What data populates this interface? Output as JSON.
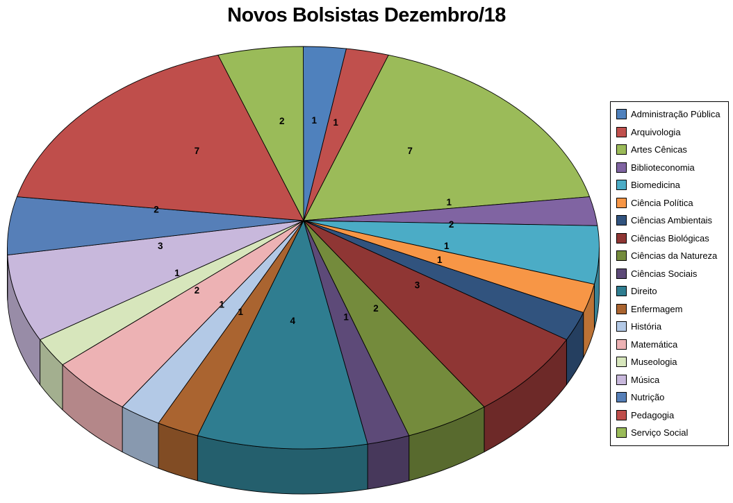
{
  "page": {
    "background_color": "#FFFFFF",
    "text_color": "#000000"
  },
  "chart_data": {
    "type": "pie",
    "projection": "3d",
    "title": "Novos Bolsistas Dezembro/18",
    "legend_position": "right",
    "label_type": "value",
    "start_angle_deg": 0,
    "direction": "clockwise",
    "total": 43,
    "slices": [
      {
        "label": "Administração Pública",
        "value": 1,
        "color": "#4F81BD"
      },
      {
        "label": "Arquivologia",
        "value": 1,
        "color": "#C0504D"
      },
      {
        "label": "Artes Cênicas",
        "value": 7,
        "color": "#9BBB59"
      },
      {
        "label": "Biblioteconomia",
        "value": 1,
        "color": "#8064A2"
      },
      {
        "label": "Biomedicina",
        "value": 2,
        "color": "#4BACC6"
      },
      {
        "label": "Ciência Política",
        "value": 1,
        "color": "#F79646"
      },
      {
        "label": "Ciências Ambientais",
        "value": 1,
        "color": "#31537E"
      },
      {
        "label": "Ciências Biológicas",
        "value": 3,
        "color": "#8F3634"
      },
      {
        "label": "Ciências da Natureza",
        "value": 2,
        "color": "#748B3C"
      },
      {
        "label": "Ciências Sociais",
        "value": 1,
        "color": "#5D4A78"
      },
      {
        "label": "Direito",
        "value": 4,
        "color": "#2F7D90"
      },
      {
        "label": "Enfermagem",
        "value": 1,
        "color": "#AA6430"
      },
      {
        "label": "História",
        "value": 1,
        "color": "#B3C9E6"
      },
      {
        "label": "Matemática",
        "value": 2,
        "color": "#EDB2B4"
      },
      {
        "label": "Museologia",
        "value": 1,
        "color": "#D7E6BC"
      },
      {
        "label": "Música",
        "value": 3,
        "color": "#C8B8DC"
      },
      {
        "label": "Nutrição",
        "value": 2,
        "color": "#567FB8"
      },
      {
        "label": "Pedagogia",
        "value": 7,
        "color": "#BF4E4B"
      },
      {
        "label": "Serviço Social",
        "value": 2,
        "color": "#9ABB59"
      }
    ]
  }
}
